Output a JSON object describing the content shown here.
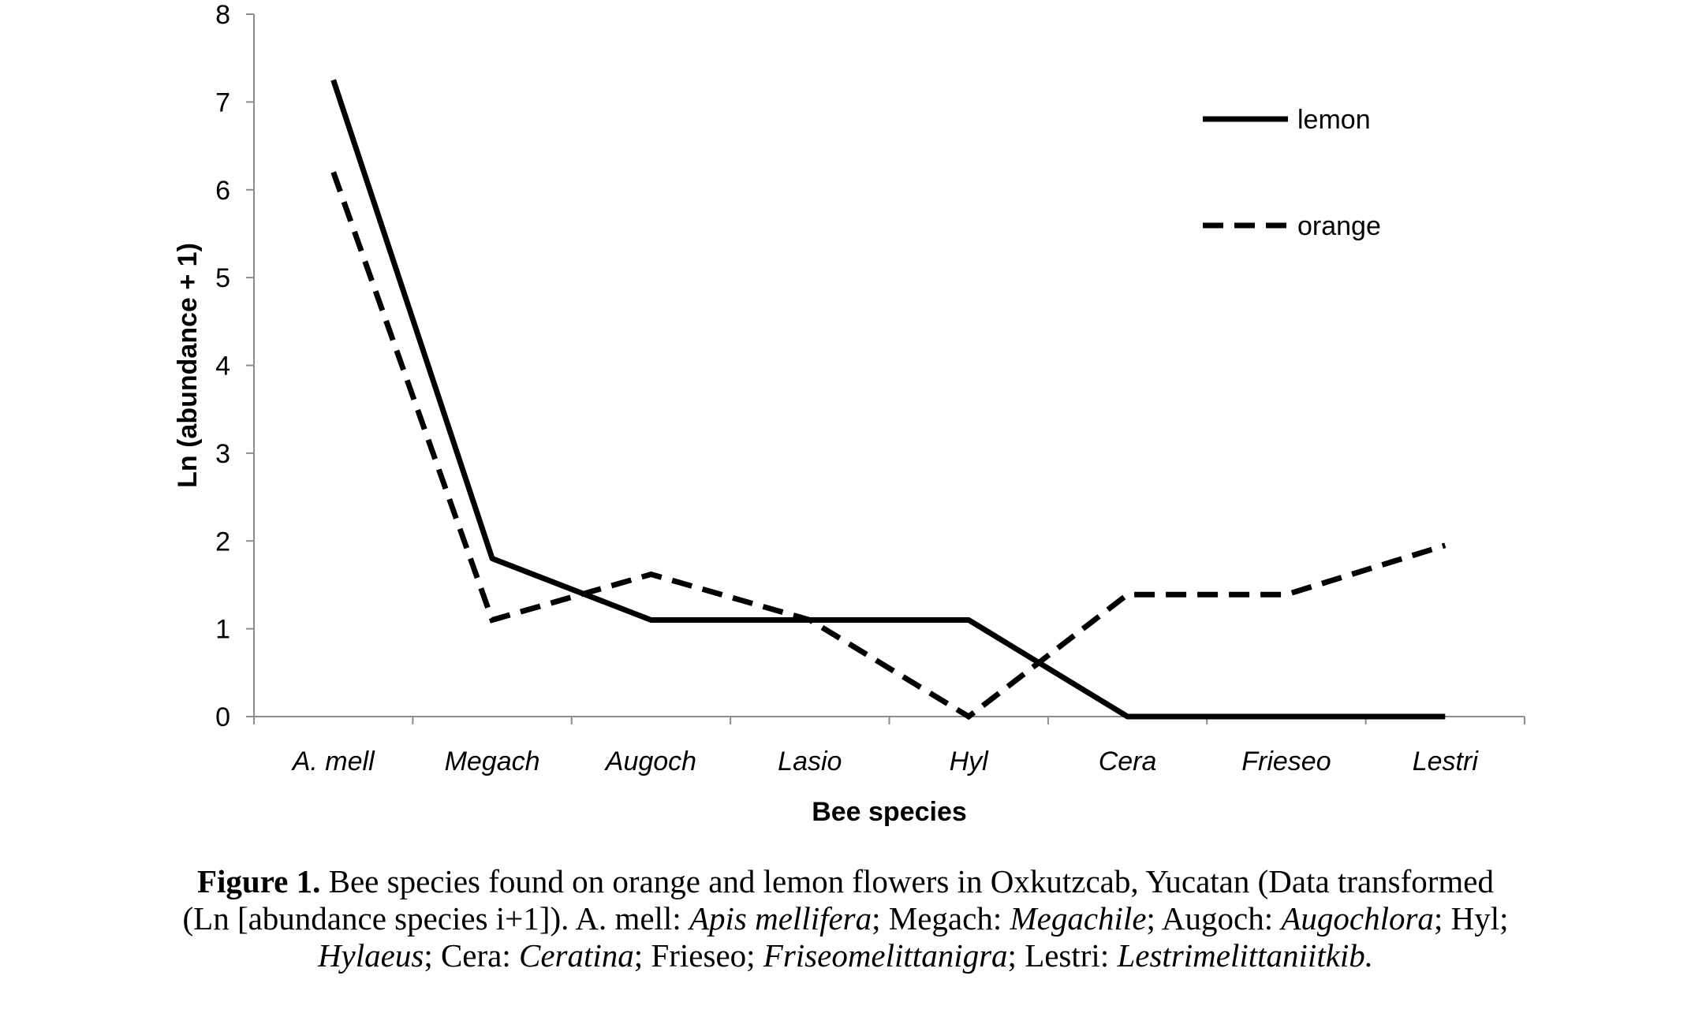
{
  "chart_data": {
    "type": "line",
    "categories": [
      "A. mell",
      "Megach",
      "Augoch",
      "Lasio",
      "Hyl",
      "Cera",
      "Frieseo",
      "Lestri"
    ],
    "series": [
      {
        "name": "lemon",
        "style": "solid",
        "values": [
          7.25,
          1.8,
          1.1,
          1.1,
          1.1,
          0,
          0,
          0
        ]
      },
      {
        "name": "orange",
        "style": "dashed",
        "values": [
          6.2,
          1.1,
          1.62,
          1.1,
          0,
          1.39,
          1.39,
          1.95
        ]
      }
    ],
    "xlabel": "Bee species",
    "ylabel": "Ln (abundance + 1)",
    "ylim": [
      0,
      8
    ],
    "yticks": [
      "0",
      "1",
      "2",
      "3",
      "4",
      "5",
      "6",
      "7",
      "8"
    ],
    "legend_position": "top-right",
    "grid": false
  },
  "caption": {
    "figure_label": "Figure 1.",
    "line1_text": " Bee species found on orange and lemon flowers in Oxkutzcab, Yucatan (Data transformed",
    "line2_parts": [
      {
        "t": "(Ln [abundance species i+1]). A. mell: ",
        "i": false
      },
      {
        "t": "Apis mellifera",
        "i": true
      },
      {
        "t": "; Megach: ",
        "i": false
      },
      {
        "t": "Megachile",
        "i": true
      },
      {
        "t": "; Augoch: ",
        "i": false
      },
      {
        "t": "Augochlora",
        "i": true
      },
      {
        "t": "; Hyl;",
        "i": false
      }
    ],
    "line3_parts": [
      {
        "t": "Hylaeus",
        "i": true
      },
      {
        "t": "; Cera: ",
        "i": false
      },
      {
        "t": "Ceratina",
        "i": true
      },
      {
        "t": "; Frieseo; ",
        "i": false
      },
      {
        "t": "Friseomelittanigra",
        "i": true
      },
      {
        "t": "; Lestri: ",
        "i": false
      },
      {
        "t": "Lestrimelittaniitkib.",
        "i": true
      }
    ]
  }
}
